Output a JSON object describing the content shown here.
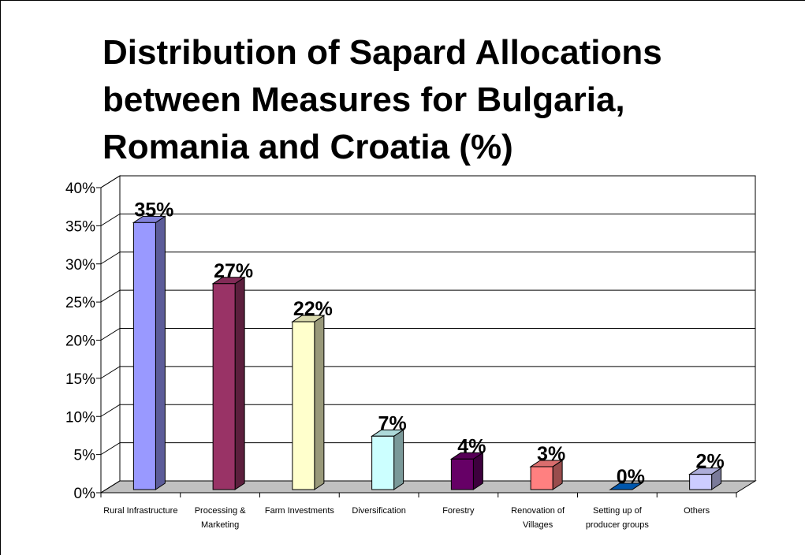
{
  "chart_data": {
    "type": "bar3d",
    "title": [
      "Distribution of Sapard Allocations",
      "between Measures for Bulgaria,",
      "Romania and Croatia (%)"
    ],
    "categories": [
      "Rural Infrastructure",
      "Processing & Marketing",
      "Farm Investments",
      "Diversification",
      "Forestry",
      "Renovation of Villages",
      "Setting up of producer groups",
      "Others"
    ],
    "values": [
      35,
      27,
      22,
      7,
      4,
      3,
      0,
      2
    ],
    "value_labels": [
      "35%",
      "27%",
      "22%",
      "7%",
      "4%",
      "3%",
      "0%",
      "2%"
    ],
    "colors": [
      "#9999ff",
      "#993366",
      "#ffffcc",
      "#ccffff",
      "#660066",
      "#ff8080",
      "#0066cc",
      "#ccccff"
    ],
    "ylim": [
      0,
      40
    ],
    "yticks": [
      {
        "value": 0,
        "label": "0%"
      },
      {
        "value": 5,
        "label": "5%"
      },
      {
        "value": 10,
        "label": "10%"
      },
      {
        "value": 15,
        "label": "15%"
      },
      {
        "value": 20,
        "label": "20%"
      },
      {
        "value": 25,
        "label": "25%"
      },
      {
        "value": 30,
        "label": "30%"
      },
      {
        "value": 35,
        "label": "35%"
      },
      {
        "value": 40,
        "label": "40%"
      }
    ],
    "grid": true
  }
}
